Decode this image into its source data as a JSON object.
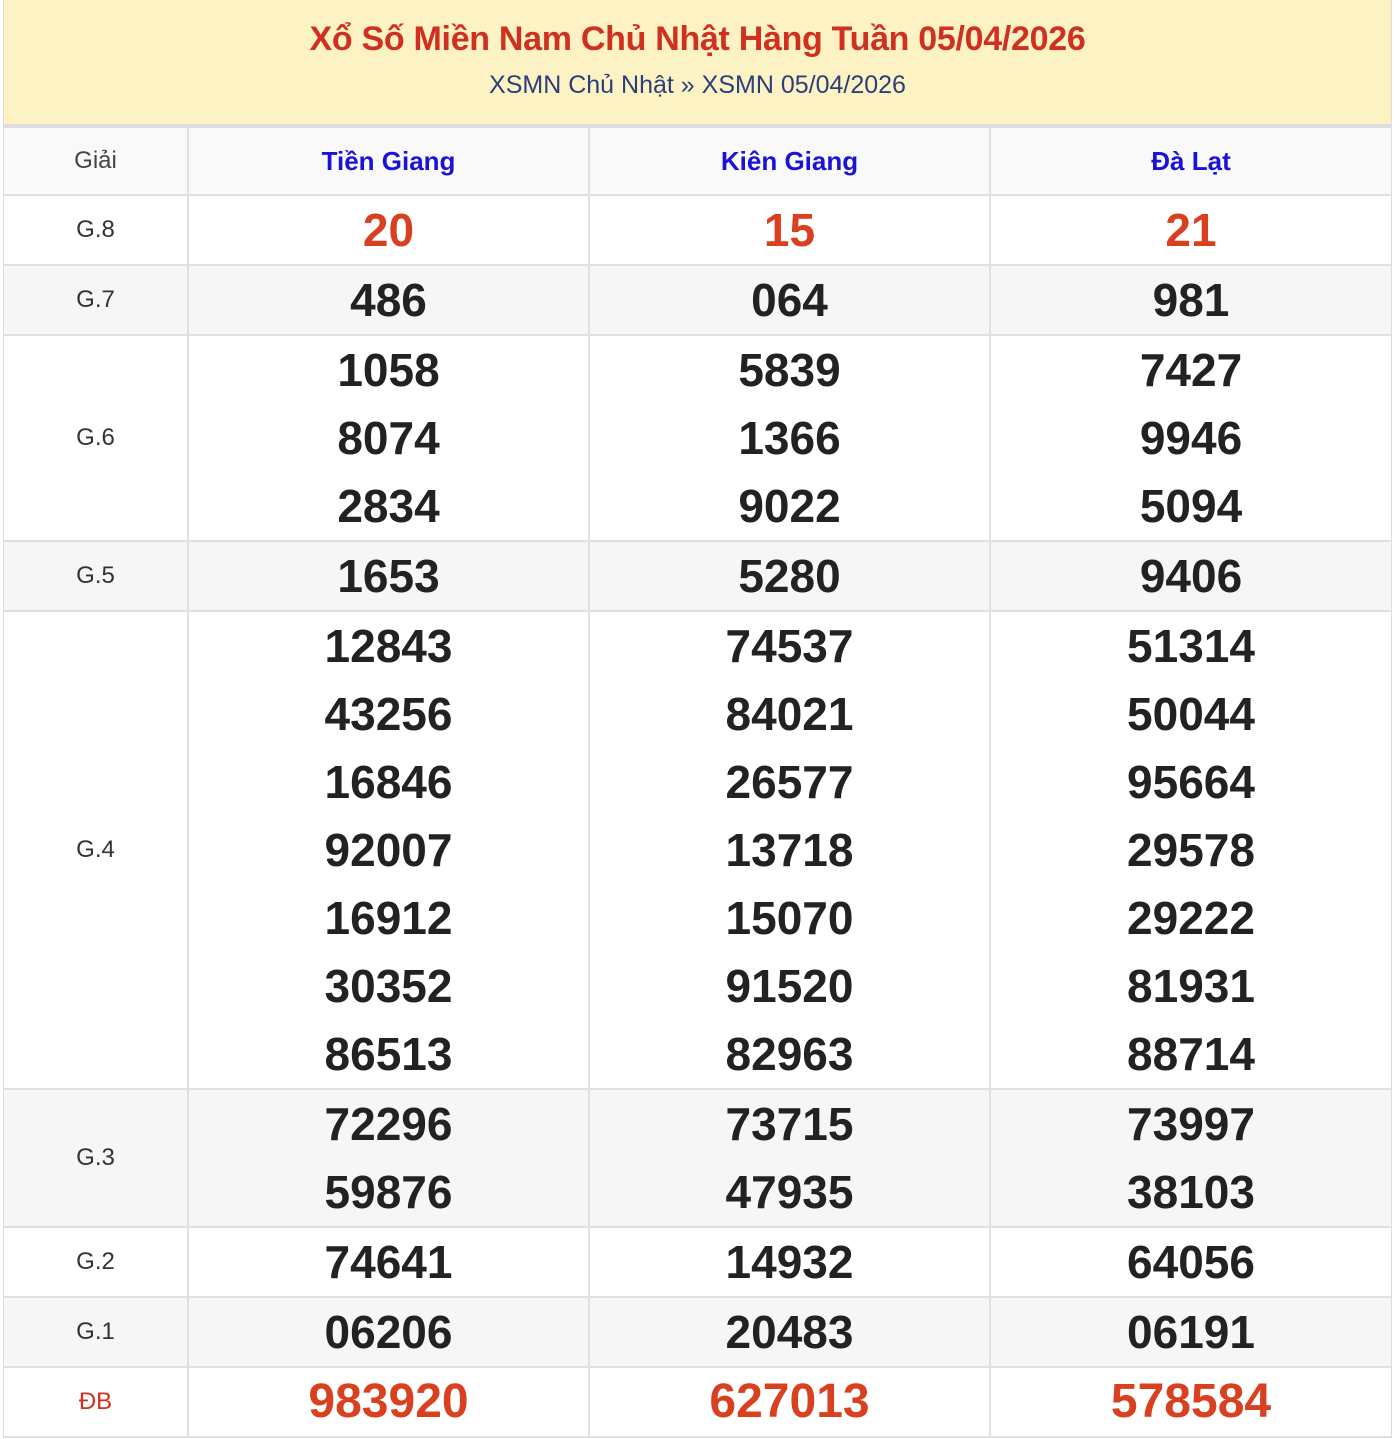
{
  "header": {
    "title": "Xổ Số Miền Nam Chủ Nhật Hàng Tuần 05/04/2026",
    "breadcrumb": [
      "XSMN Chủ Nhật",
      "»",
      "XSMN 05/04/2026"
    ]
  },
  "table": {
    "label_header": "Giải",
    "provinces": [
      "Tiền Giang",
      "Kiên Giang",
      "Đà Lạt"
    ],
    "rows": [
      {
        "label": "G.8",
        "values": [
          [
            "20"
          ],
          [
            "15"
          ],
          [
            "21"
          ]
        ]
      },
      {
        "label": "G.7",
        "values": [
          [
            "486"
          ],
          [
            "064"
          ],
          [
            "981"
          ]
        ]
      },
      {
        "label": "G.6",
        "values": [
          [
            "1058",
            "8074",
            "2834"
          ],
          [
            "5839",
            "1366",
            "9022"
          ],
          [
            "7427",
            "9946",
            "5094"
          ]
        ]
      },
      {
        "label": "G.5",
        "values": [
          [
            "1653"
          ],
          [
            "5280"
          ],
          [
            "9406"
          ]
        ]
      },
      {
        "label": "G.4",
        "values": [
          [
            "12843",
            "43256",
            "16846",
            "92007",
            "16912",
            "30352",
            "86513"
          ],
          [
            "74537",
            "84021",
            "26577",
            "13718",
            "15070",
            "91520",
            "82963"
          ],
          [
            "51314",
            "50044",
            "95664",
            "29578",
            "29222",
            "81931",
            "88714"
          ]
        ]
      },
      {
        "label": "G.3",
        "values": [
          [
            "72296",
            "59876"
          ],
          [
            "73715",
            "47935"
          ],
          [
            "73997",
            "38103"
          ]
        ]
      },
      {
        "label": "G.2",
        "values": [
          [
            "74641"
          ],
          [
            "14932"
          ],
          [
            "64056"
          ]
        ]
      },
      {
        "label": "G.1",
        "values": [
          [
            "06206"
          ],
          [
            "20483"
          ],
          [
            "06191"
          ]
        ]
      },
      {
        "label": "ĐB",
        "values": [
          [
            "983920"
          ],
          [
            "627013"
          ],
          [
            "578584"
          ]
        ]
      }
    ]
  },
  "colors": {
    "title": "#d0301f",
    "province": "#1a13d6",
    "highlight": "#d8401f",
    "header_bg": "#fdf2c4"
  }
}
